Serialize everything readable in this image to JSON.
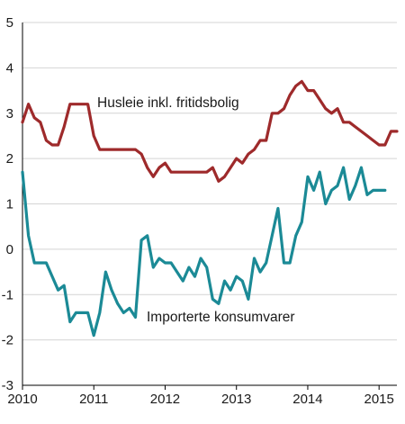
{
  "chart_data": {
    "type": "line",
    "title": "",
    "xlabel": "",
    "ylabel": "",
    "xlim": [
      2010,
      2015.25
    ],
    "ylim": [
      -3,
      5
    ],
    "x_ticks": [
      2010,
      2011,
      2012,
      2013,
      2014,
      2015
    ],
    "x_tick_labels": [
      "2010",
      "2011",
      "2012",
      "2013",
      "2014",
      "2015"
    ],
    "y_ticks": [
      5,
      4,
      3,
      2,
      1,
      0,
      -1,
      -2,
      -3
    ],
    "y_tick_labels": [
      "5",
      "4",
      "3",
      "2",
      "1",
      "0",
      "-1",
      "-2",
      "-3"
    ],
    "grid": "horizontal",
    "legend": "inline labels",
    "x_start": 2010,
    "x_step": 0.0833333,
    "series": [
      {
        "name": "Husleie inkl. fritidsbolig",
        "color": "#9e2a2b",
        "values": [
          2.8,
          3.2,
          2.9,
          2.8,
          2.4,
          2.3,
          2.3,
          2.7,
          3.2,
          3.2,
          3.2,
          3.2,
          2.5,
          2.2,
          2.2,
          2.2,
          2.2,
          2.2,
          2.2,
          2.2,
          2.1,
          1.8,
          1.6,
          1.8,
          1.9,
          1.7,
          1.7,
          1.7,
          1.7,
          1.7,
          1.7,
          1.7,
          1.8,
          1.5,
          1.6,
          1.8,
          2.0,
          1.9,
          2.1,
          2.2,
          2.4,
          2.4,
          3.0,
          3.0,
          3.1,
          3.4,
          3.6,
          3.7,
          3.5,
          3.5,
          3.3,
          3.1,
          3.0,
          3.1,
          2.8,
          2.8,
          2.7,
          2.6,
          2.5,
          2.4,
          2.3,
          2.3,
          2.6,
          2.6
        ]
      },
      {
        "name": "Importerte konsumvarer",
        "color": "#1b8a96",
        "values": [
          1.7,
          0.3,
          -0.3,
          -0.3,
          -0.3,
          -0.6,
          -0.9,
          -0.8,
          -1.6,
          -1.4,
          -1.4,
          -1.4,
          -1.9,
          -1.4,
          -0.5,
          -0.9,
          -1.2,
          -1.4,
          -1.3,
          -1.5,
          0.2,
          0.3,
          -0.4,
          -0.2,
          -0.3,
          -0.3,
          -0.5,
          -0.7,
          -0.4,
          -0.6,
          -0.2,
          -0.4,
          -1.1,
          -1.2,
          -0.7,
          -0.9,
          -0.6,
          -0.7,
          -1.1,
          -0.2,
          -0.5,
          -0.3,
          0.3,
          0.9,
          -0.3,
          -0.3,
          0.3,
          0.6,
          1.6,
          1.3,
          1.7,
          1.0,
          1.3,
          1.4,
          1.8,
          1.1,
          1.4,
          1.8,
          1.2,
          1.3,
          1.3,
          1.3
        ]
      }
    ]
  }
}
